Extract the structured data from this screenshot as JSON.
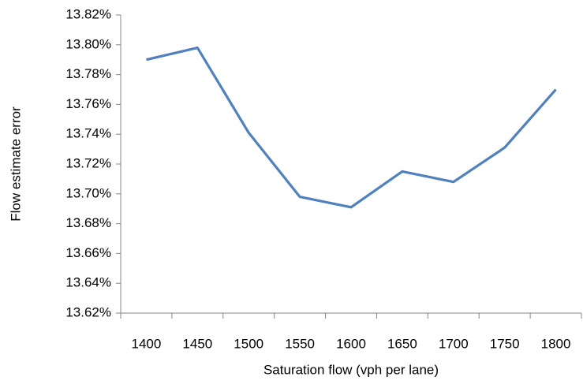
{
  "chart_data": {
    "type": "line",
    "xlabel": "Saturation flow (vph per lane)",
    "ylabel": "Flow estimate error",
    "categories": [
      "1400",
      "1450",
      "1500",
      "1550",
      "1600",
      "1650",
      "1700",
      "1750",
      "1800"
    ],
    "series": [
      {
        "color": "#4f81bd",
        "values": [
          13.79,
          13.798,
          13.741,
          13.698,
          13.691,
          13.715,
          13.708,
          13.731,
          13.77
        ]
      }
    ],
    "ylim": [
      13.62,
      13.82
    ],
    "yticks": [
      {
        "value": 13.62,
        "label": "13.62%"
      },
      {
        "value": 13.64,
        "label": "13.64%"
      },
      {
        "value": 13.66,
        "label": "13.66%"
      },
      {
        "value": 13.68,
        "label": "13.68%"
      },
      {
        "value": 13.7,
        "label": "13.70%"
      },
      {
        "value": 13.72,
        "label": "13.72%"
      },
      {
        "value": 13.74,
        "label": "13.74%"
      },
      {
        "value": 13.76,
        "label": "13.76%"
      },
      {
        "value": 13.78,
        "label": "13.78%"
      },
      {
        "value": 13.8,
        "label": "13.80%"
      },
      {
        "value": 13.82,
        "label": "13.82%"
      }
    ],
    "grid": false
  }
}
